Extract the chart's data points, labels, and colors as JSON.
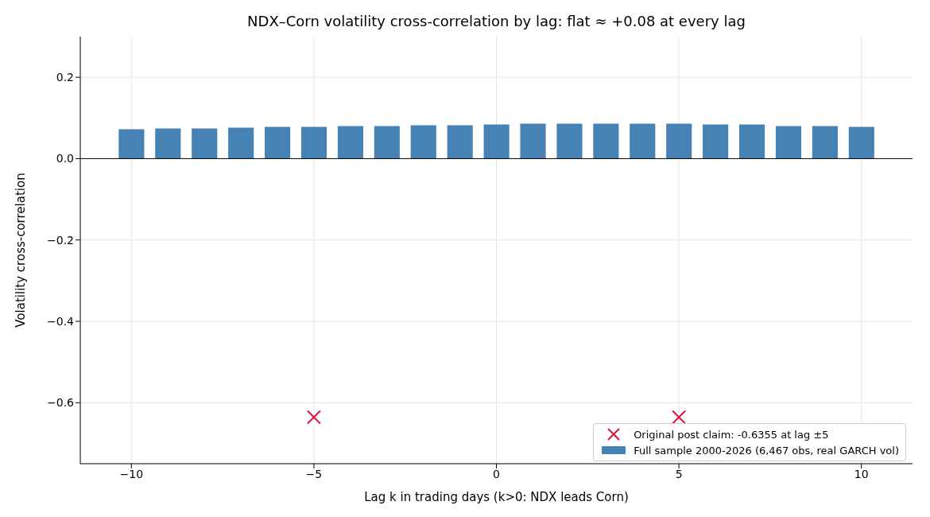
{
  "chart_data": {
    "type": "bar",
    "title": "NDX–Corn volatility cross-correlation by lag: flat ≈ +0.08 at every lag",
    "xlabel": "Lag k in trading days (k>0: NDX leads Corn)",
    "ylabel": "Volatility cross-correlation",
    "x": [
      -10,
      -9,
      -8,
      -7,
      -6,
      -5,
      -4,
      -3,
      -2,
      -1,
      0,
      1,
      2,
      3,
      4,
      5,
      6,
      7,
      8,
      9,
      10
    ],
    "series": [
      {
        "name": "Original post claim: -0.6355 at lag ±5",
        "type": "scatter",
        "marker": "cross",
        "color": "#dc143c",
        "x": [
          -5,
          5
        ],
        "values": [
          -0.6355,
          -0.6355
        ]
      },
      {
        "name": "Full sample 2000-2026 (6,467 obs, real GARCH vol)",
        "color": "#4682b4",
        "values": [
          0.072,
          0.074,
          0.074,
          0.076,
          0.078,
          0.078,
          0.08,
          0.08,
          0.082,
          0.082,
          0.084,
          0.086,
          0.086,
          0.086,
          0.086,
          0.086,
          0.084,
          0.084,
          0.08,
          0.08,
          0.078
        ]
      }
    ],
    "xlim": [
      -11.4,
      11.4
    ],
    "xticks": [
      {
        "value": -10,
        "label": "−10"
      },
      {
        "value": -5,
        "label": "−5"
      },
      0,
      5,
      10
    ],
    "ylim": [
      -0.75,
      0.3
    ],
    "yticks": [
      {
        "value": -0.6,
        "label": "−0.6"
      },
      {
        "value": -0.4,
        "label": "−0.4"
      },
      {
        "value": -0.2,
        "label": "−0.2"
      },
      {
        "value": 0,
        "label": "0.0"
      },
      0.2
    ],
    "ref_lines": [
      {
        "axis": "y",
        "value": 0,
        "color": "#000000"
      }
    ],
    "grid": true,
    "legend": "bottom right"
  }
}
